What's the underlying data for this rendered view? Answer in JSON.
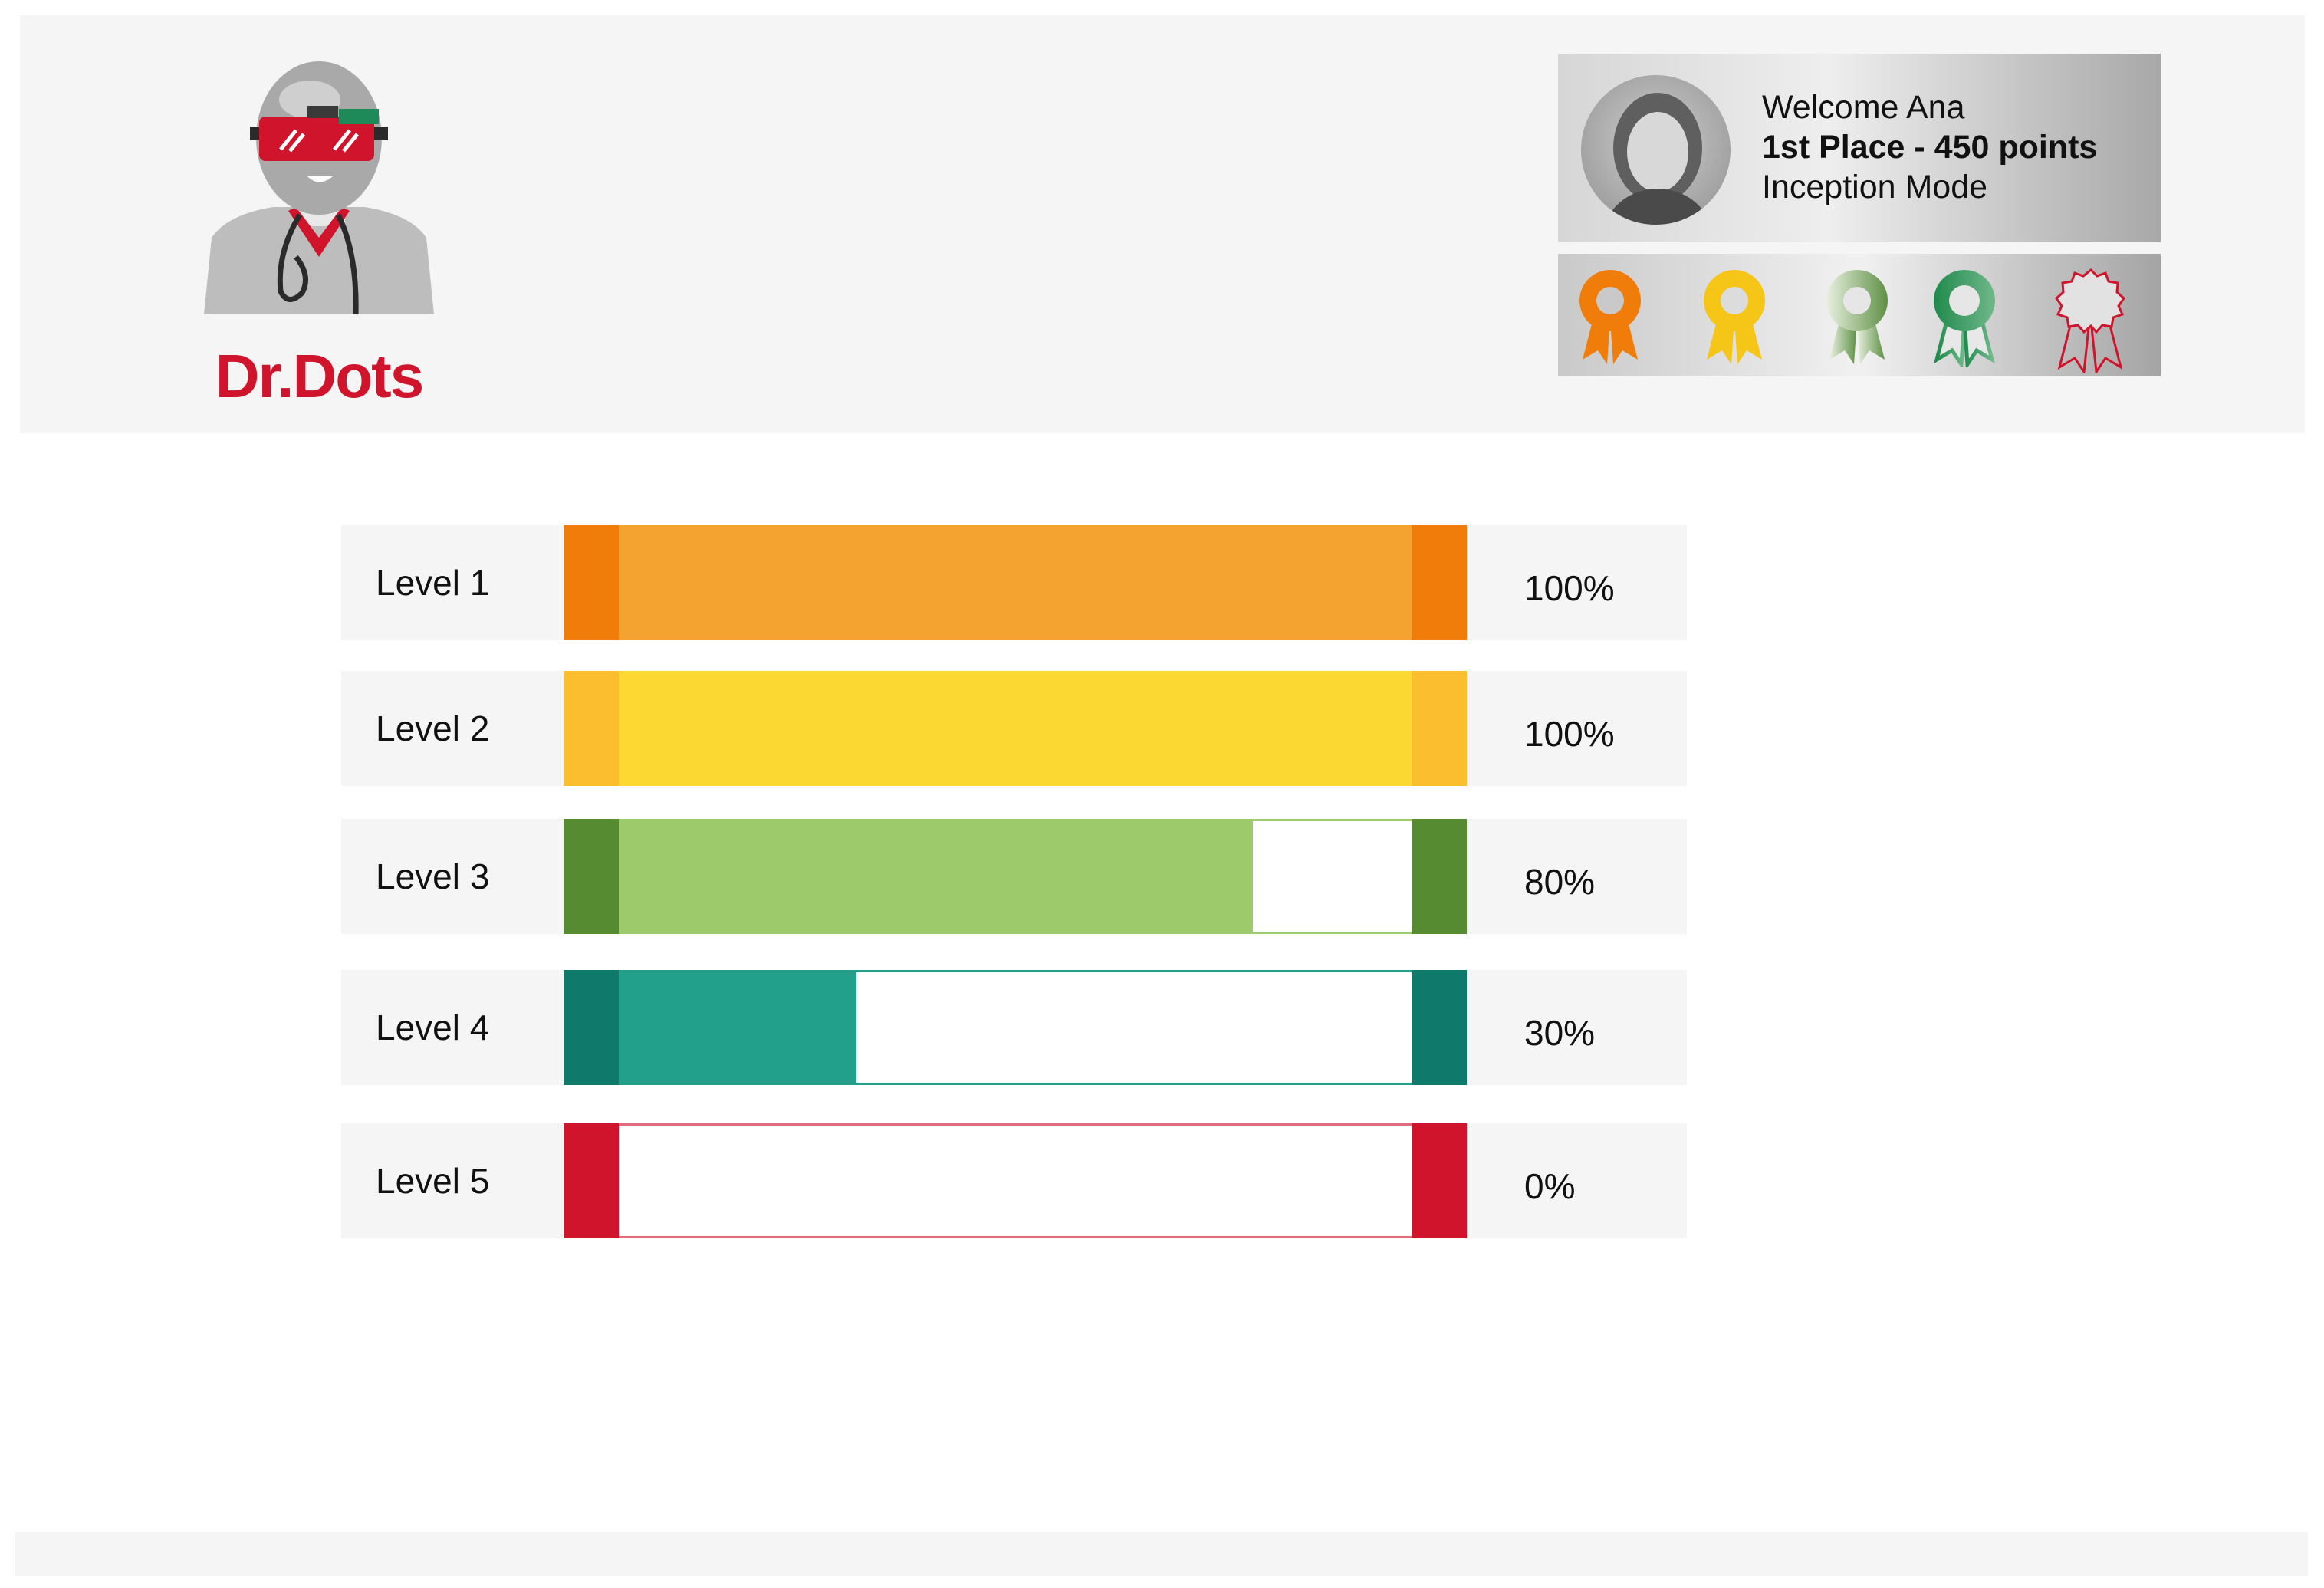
{
  "logo": {
    "text": "Dr.Dots",
    "brand_color": "#d0142c"
  },
  "profile": {
    "welcome": "Welcome Ana",
    "rank": "1st Place - 450 points",
    "mode": "Inception Mode",
    "avatar_icon": "user-avatar"
  },
  "badges": [
    {
      "name": "orange-ribbon-icon",
      "color": "#f07d0a"
    },
    {
      "name": "yellow-ribbon-icon",
      "color": "#f5c518"
    },
    {
      "name": "light-green-ribbon-icon",
      "color": "#8ab56b"
    },
    {
      "name": "green-ribbon-icon",
      "color": "#1f8a4c"
    },
    {
      "name": "red-ribbon-outline-icon",
      "color": "#d0142c"
    }
  ],
  "levels": [
    {
      "label": "Level 1",
      "percent_text": "100%",
      "progress": 1.0,
      "cap_color": "#f07d0a",
      "fill_color": "#f5a330",
      "border_color": "#f5a330"
    },
    {
      "label": "Level 2",
      "percent_text": "100%",
      "progress": 1.0,
      "cap_color": "#fbbe2e",
      "fill_color": "#fbd832",
      "border_color": "#fbd832"
    },
    {
      "label": "Level 3",
      "percent_text": "80%",
      "progress": 0.8,
      "cap_color": "#578b32",
      "fill_color": "#9dca6b",
      "border_color": "#9dca6b"
    },
    {
      "label": "Level 4",
      "percent_text": "30%",
      "progress": 0.3,
      "cap_color": "#0f7a6c",
      "fill_color": "#22a08b",
      "border_color": "#22a08b"
    },
    {
      "label": "Level 5",
      "percent_text": "0%",
      "progress": 0.0,
      "cap_color": "#d0142c",
      "fill_color": "#d0142c",
      "border_color": "#e36a7a"
    }
  ]
}
